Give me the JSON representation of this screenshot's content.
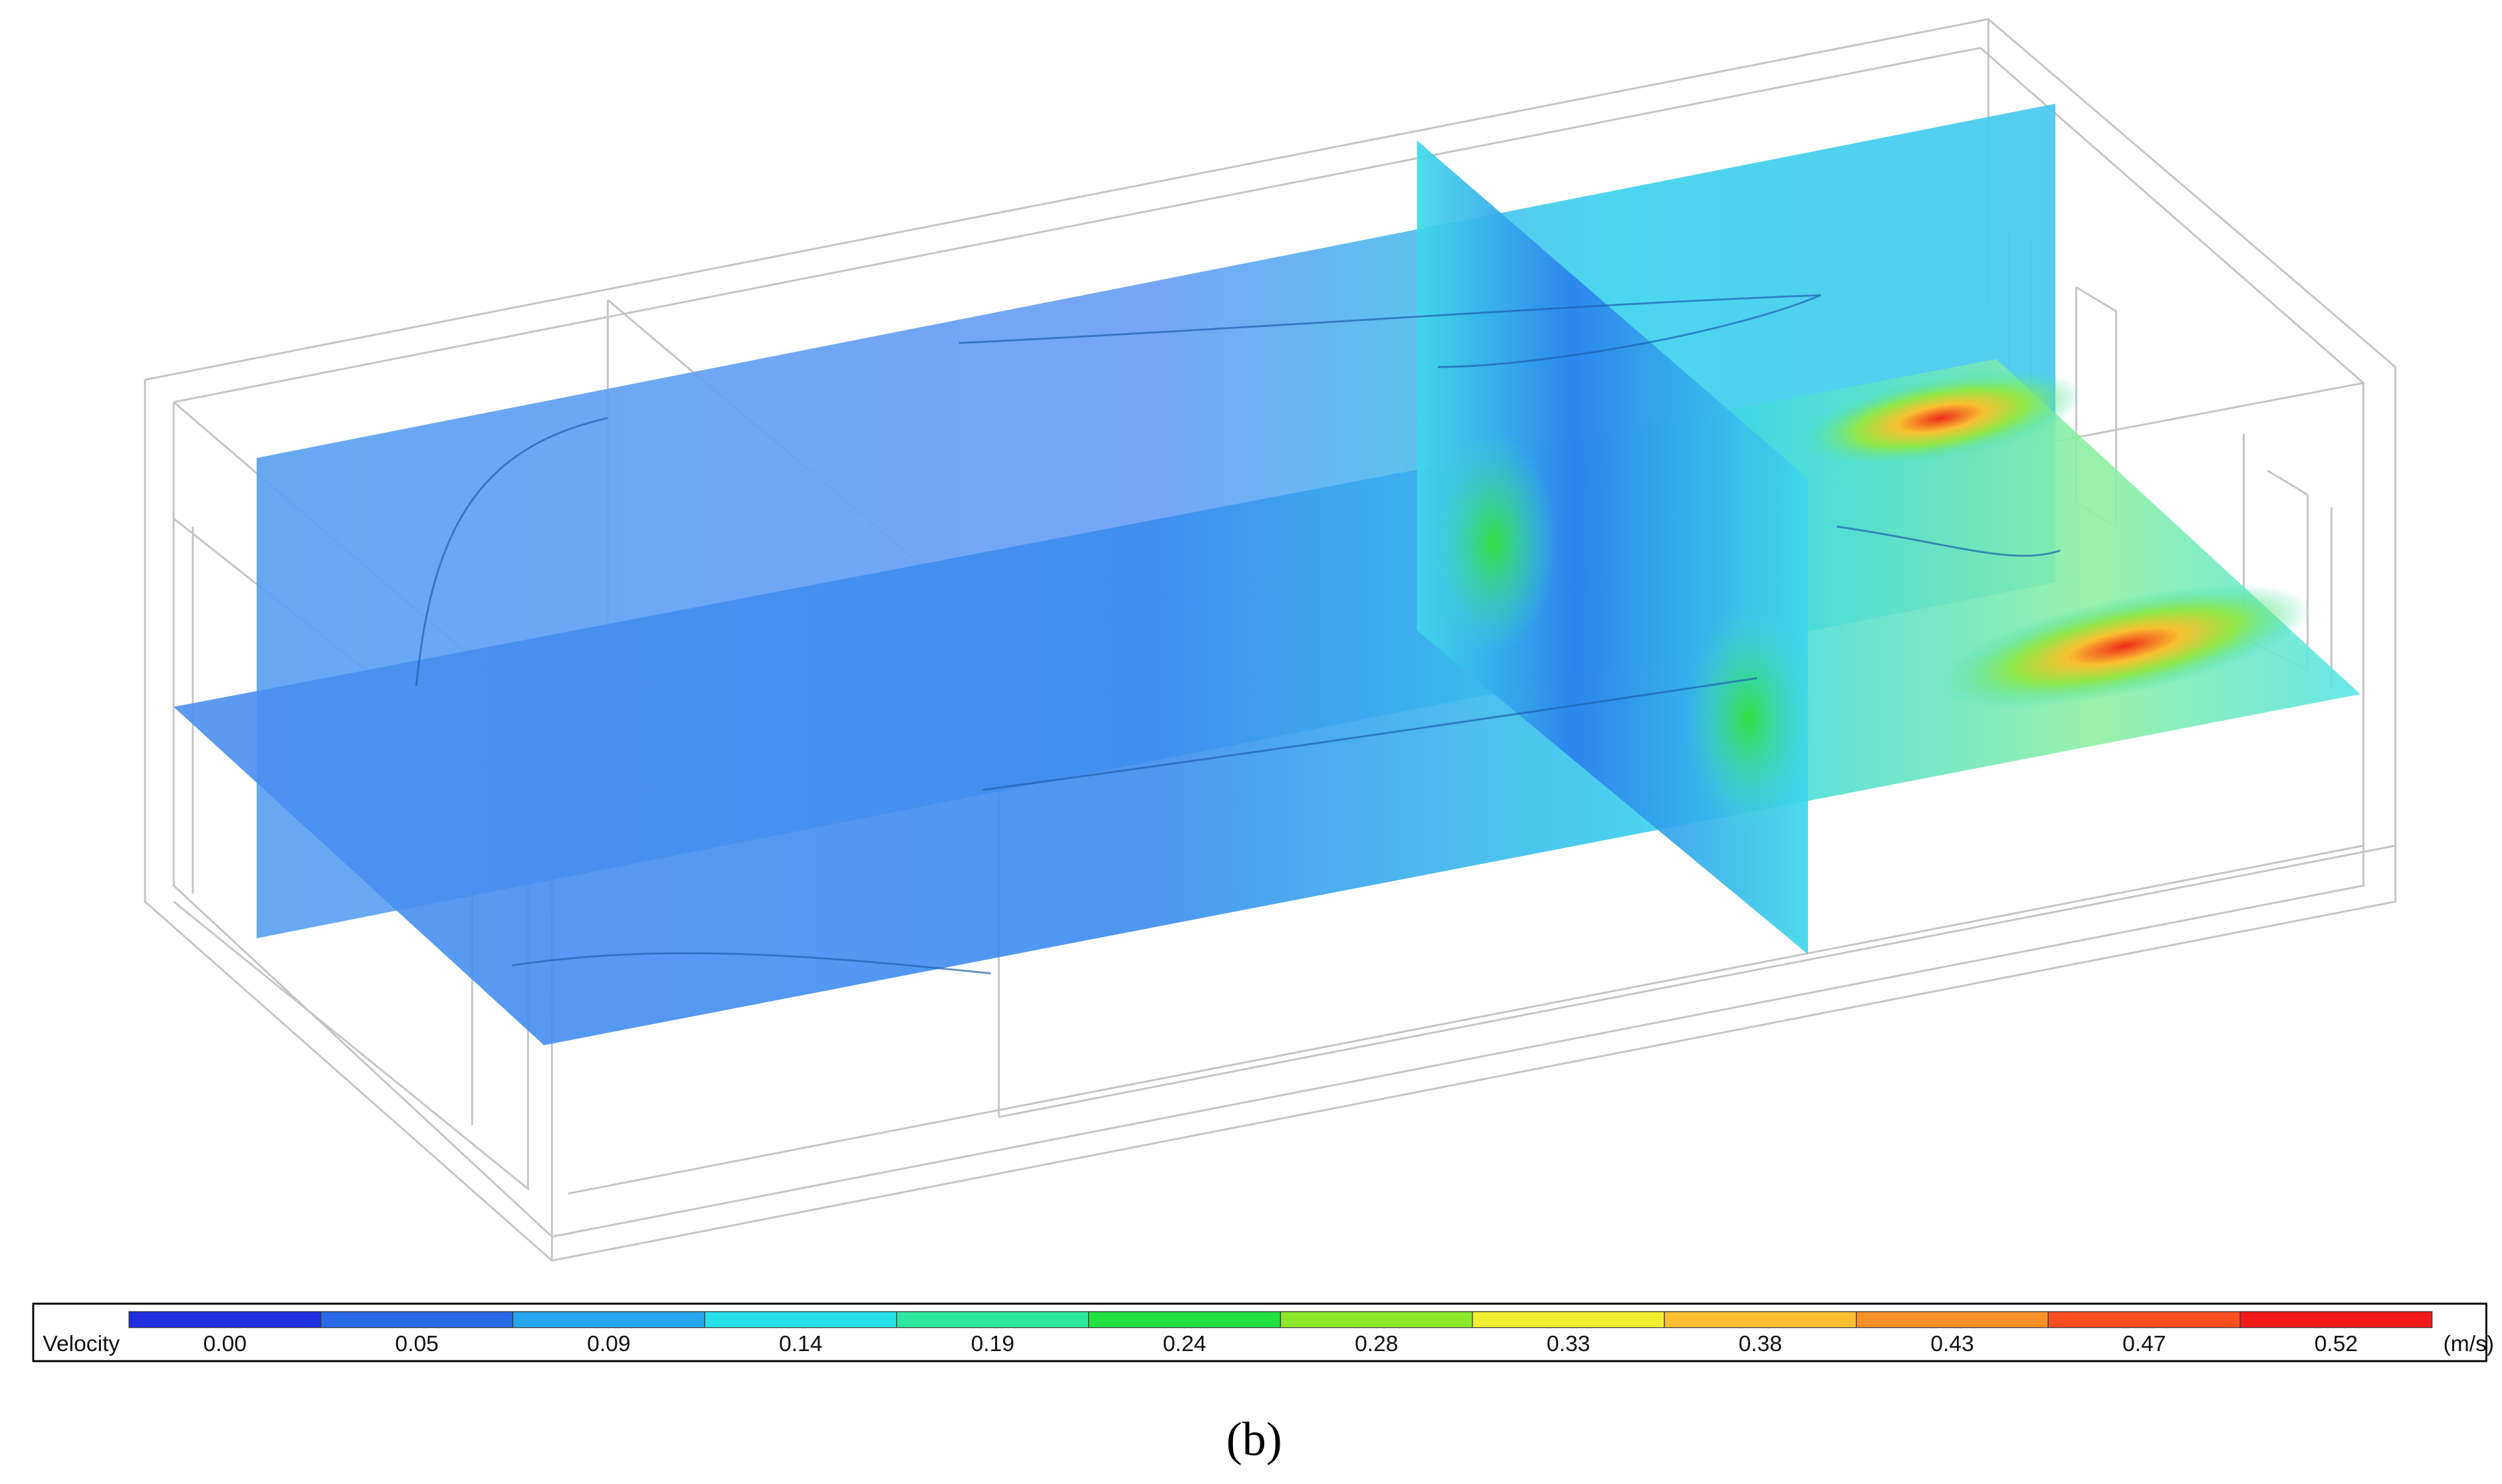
{
  "figure": {
    "legend": {
      "title": "Velocity",
      "unit": "(m/s)",
      "ticks": [
        "0.00",
        "0.05",
        "0.09",
        "0.14",
        "0.19",
        "0.24",
        "0.28",
        "0.33",
        "0.38",
        "0.43",
        "0.47",
        "0.52"
      ],
      "colors": [
        "#1f2fe0",
        "#2a6ae8",
        "#26a6ee",
        "#2ae0e8",
        "#2ee8a0",
        "#22e040",
        "#8ce82a",
        "#f0f030",
        "#f8c030",
        "#f89028",
        "#f85020",
        "#f01818"
      ]
    },
    "caption": "(b)"
  }
}
